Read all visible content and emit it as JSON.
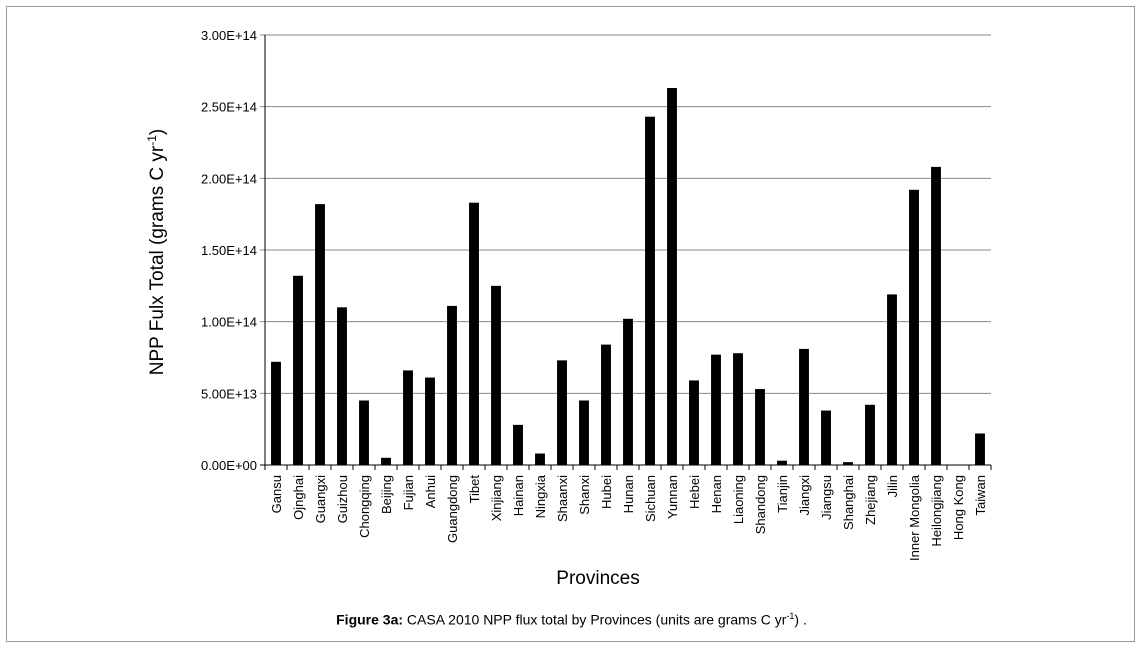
{
  "chart_data": {
    "type": "bar",
    "title": "",
    "xlabel": "Provinces",
    "ylabel_main": "NPP Fulx Total (grams C yr",
    "ylabel_sup": "-1",
    "ylabel_end": ")",
    "ylim": [
      0,
      300000000000000
    ],
    "yticks": [
      {
        "value": 0,
        "label": "0.00E+00"
      },
      {
        "value": 50000000000000,
        "label": "5.00E+13"
      },
      {
        "value": 100000000000000,
        "label": "1.00E+14"
      },
      {
        "value": 150000000000000,
        "label": "1.50E+14"
      },
      {
        "value": 200000000000000,
        "label": "2.00E+14"
      },
      {
        "value": 250000000000000,
        "label": "2.50E+14"
      },
      {
        "value": 300000000000000,
        "label": "3.00E+14"
      }
    ],
    "grid": true,
    "bar_color": "#000000",
    "categories": [
      "Gansu",
      "Ojnghai",
      "Guangxi",
      "Guizhou",
      "Chongqing",
      "Beijing",
      "Fujian",
      "Anhui",
      "Guangdong",
      "Tibet",
      "Xinjiang",
      "Hainan",
      "Ningxia",
      "Shaanxi",
      "Shanxi",
      "Hubei",
      "Hunan",
      "Sichuan",
      "Yunnan",
      "Hebei",
      "Henan",
      "Liaoning",
      "Shandong",
      "Tianjin",
      "Jiangxi",
      "Jiangsu",
      "Shanghai",
      "Zhejiang",
      "Jilin",
      "Inner Mongolia",
      "Heilongjiang",
      "Hong Kong",
      "Taiwan"
    ],
    "values": [
      72000000000000,
      132000000000000,
      182000000000000,
      110000000000000,
      45000000000000,
      5000000000000,
      66000000000000,
      61000000000000,
      111000000000000,
      183000000000000,
      125000000000000,
      28000000000000,
      8000000000000,
      73000000000000,
      45000000000000,
      84000000000000,
      102000000000000,
      243000000000000,
      263000000000000,
      59000000000000,
      77000000000000,
      78000000000000,
      53000000000000,
      3000000000000,
      81000000000000,
      38000000000000,
      2000000000000,
      42000000000000,
      119000000000000,
      192000000000000,
      208000000000000,
      0,
      22000000000000
    ]
  },
  "caption": {
    "label": "Figure 3a:",
    "text": " CASA 2010 NPP flux total by Provinces (units are grams C yr",
    "sup": "-1",
    "end": ") ."
  }
}
